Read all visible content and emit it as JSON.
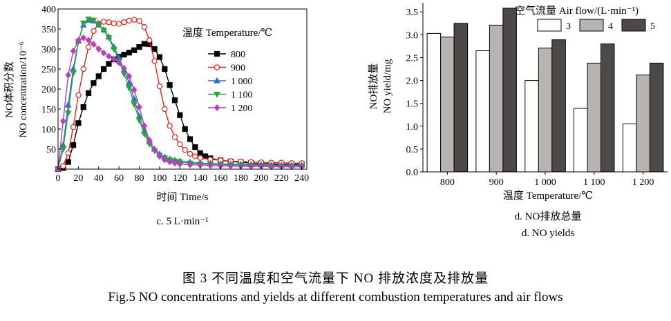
{
  "colors": {
    "s800": "#000000",
    "s900": "#e8201c",
    "s1000": "#2b6bd4",
    "s1100": "#27a53b",
    "s1200": "#b43fbf",
    "bar3": "#ffffff",
    "bar4": "#b7b3b1",
    "bar5": "#4d4949"
  },
  "chart_data": [
    {
      "type": "line",
      "panel_label": "c. 5 L·min⁻¹",
      "xlabel": "时间 Time/s",
      "ylabel_cn": "NO体积分数",
      "ylabel_en": "NO concentration/10⁻⁶",
      "xlim": [
        0,
        245
      ],
      "ylim": [
        0,
        400
      ],
      "x_ticks": [
        0,
        20,
        40,
        60,
        80,
        100,
        120,
        140,
        160,
        180,
        200,
        220,
        240
      ],
      "y_ticks": [
        50,
        100,
        150,
        200,
        250,
        300,
        350,
        400
      ],
      "legend_title": "温度 Temperature/℃",
      "legend_position": "top-right",
      "series": [
        {
          "name": "800",
          "key": "s800",
          "marker": "square",
          "points": [
            [
              0,
              0
            ],
            [
              5,
              3
            ],
            [
              10,
              18
            ],
            [
              15,
              60
            ],
            [
              20,
              115
            ],
            [
              25,
              155
            ],
            [
              30,
              190
            ],
            [
              35,
              215
            ],
            [
              40,
              232
            ],
            [
              45,
              250
            ],
            [
              50,
              263
            ],
            [
              55,
              274
            ],
            [
              60,
              281
            ],
            [
              65,
              286
            ],
            [
              70,
              291
            ],
            [
              75,
              297
            ],
            [
              80,
              305
            ],
            [
              85,
              313
            ],
            [
              90,
              312
            ],
            [
              95,
              300
            ],
            [
              100,
              280
            ],
            [
              105,
              250
            ],
            [
              110,
              210
            ],
            [
              115,
              172
            ],
            [
              120,
              135
            ],
            [
              125,
              100
            ],
            [
              130,
              75
            ],
            [
              135,
              55
            ],
            [
              140,
              40
            ],
            [
              145,
              32
            ],
            [
              150,
              27
            ],
            [
              160,
              22
            ],
            [
              170,
              19
            ],
            [
              180,
              17
            ],
            [
              190,
              15
            ],
            [
              200,
              14
            ],
            [
              210,
              13
            ],
            [
              220,
              12
            ],
            [
              230,
              12
            ],
            [
              240,
              12
            ]
          ]
        },
        {
          "name": "900",
          "key": "s900",
          "marker": "circle",
          "points": [
            [
              0,
              0
            ],
            [
              5,
              8
            ],
            [
              10,
              40
            ],
            [
              15,
              105
            ],
            [
              20,
              185
            ],
            [
              25,
              250
            ],
            [
              30,
              305
            ],
            [
              35,
              345
            ],
            [
              40,
              364
            ],
            [
              45,
              368
            ],
            [
              50,
              367
            ],
            [
              55,
              364
            ],
            [
              60,
              363
            ],
            [
              65,
              367
            ],
            [
              70,
              371
            ],
            [
              75,
              373
            ],
            [
              80,
              370
            ],
            [
              85,
              355
            ],
            [
              90,
              322
            ],
            [
              95,
              270
            ],
            [
              100,
              207
            ],
            [
              105,
              150
            ],
            [
              110,
              108
            ],
            [
              115,
              80
            ],
            [
              120,
              62
            ],
            [
              125,
              48
            ],
            [
              130,
              38
            ],
            [
              135,
              32
            ],
            [
              140,
              28
            ],
            [
              150,
              24
            ],
            [
              160,
              22
            ],
            [
              170,
              20
            ],
            [
              180,
              19
            ],
            [
              190,
              18
            ],
            [
              200,
              17
            ],
            [
              210,
              16
            ],
            [
              220,
              16
            ],
            [
              230,
              15
            ],
            [
              240,
              15
            ]
          ]
        },
        {
          "name": "1 000",
          "key": "s1000",
          "marker": "triangle-up",
          "points": [
            [
              0,
              0
            ],
            [
              5,
              60
            ],
            [
              10,
              160
            ],
            [
              15,
              250
            ],
            [
              20,
              320
            ],
            [
              25,
              360
            ],
            [
              30,
              372
            ],
            [
              35,
              370
            ],
            [
              40,
              360
            ],
            [
              45,
              348
            ],
            [
              50,
              330
            ],
            [
              55,
              305
            ],
            [
              60,
              278
            ],
            [
              65,
              248
            ],
            [
              70,
              215
            ],
            [
              75,
              175
            ],
            [
              80,
              132
            ],
            [
              85,
              95
            ],
            [
              90,
              68
            ],
            [
              95,
              50
            ],
            [
              100,
              38
            ],
            [
              105,
              30
            ],
            [
              110,
              25
            ],
            [
              115,
              22
            ],
            [
              120,
              20
            ],
            [
              130,
              17
            ],
            [
              140,
              15
            ],
            [
              150,
              14
            ],
            [
              160,
              13
            ],
            [
              170,
              12
            ],
            [
              180,
              12
            ],
            [
              190,
              11
            ],
            [
              200,
              11
            ],
            [
              210,
              10
            ],
            [
              220,
              10
            ],
            [
              230,
              10
            ],
            [
              240,
              10
            ]
          ]
        },
        {
          "name": "1 100",
          "key": "s1100",
          "marker": "triangle-down",
          "points": [
            [
              0,
              0
            ],
            [
              5,
              50
            ],
            [
              10,
              140
            ],
            [
              15,
              240
            ],
            [
              20,
              318
            ],
            [
              25,
              365
            ],
            [
              30,
              375
            ],
            [
              35,
              372
            ],
            [
              40,
              362
            ],
            [
              45,
              347
            ],
            [
              50,
              328
            ],
            [
              55,
              300
            ],
            [
              60,
              270
            ],
            [
              65,
              238
            ],
            [
              70,
              203
            ],
            [
              75,
              162
            ],
            [
              80,
              122
            ],
            [
              85,
              88
            ],
            [
              90,
              63
            ],
            [
              95,
              46
            ],
            [
              100,
              35
            ],
            [
              105,
              28
            ],
            [
              110,
              23
            ],
            [
              115,
              20
            ],
            [
              120,
              18
            ],
            [
              130,
              15
            ],
            [
              140,
              13
            ],
            [
              150,
              12
            ],
            [
              160,
              11
            ],
            [
              170,
              10
            ],
            [
              180,
              10
            ],
            [
              190,
              9
            ],
            [
              200,
              9
            ],
            [
              210,
              9
            ],
            [
              220,
              8
            ],
            [
              230,
              8
            ],
            [
              240,
              8
            ]
          ]
        },
        {
          "name": "1 200",
          "key": "s1200",
          "marker": "diamond",
          "points": [
            [
              0,
              0
            ],
            [
              5,
              120
            ],
            [
              10,
              235
            ],
            [
              15,
              295
            ],
            [
              20,
              322
            ],
            [
              25,
              328
            ],
            [
              30,
              322
            ],
            [
              35,
              312
            ],
            [
              40,
              300
            ],
            [
              45,
              290
            ],
            [
              50,
              282
            ],
            [
              55,
              275
            ],
            [
              60,
              266
            ],
            [
              65,
              252
            ],
            [
              70,
              232
            ],
            [
              75,
              198
            ],
            [
              80,
              155
            ],
            [
              85,
              108
            ],
            [
              90,
              72
            ],
            [
              95,
              48
            ],
            [
              100,
              32
            ],
            [
              105,
              23
            ],
            [
              110,
              18
            ],
            [
              115,
              15
            ],
            [
              120,
              13
            ],
            [
              130,
              11
            ],
            [
              140,
              10
            ],
            [
              150,
              9
            ],
            [
              160,
              8
            ],
            [
              170,
              8
            ],
            [
              180,
              7
            ],
            [
              190,
              7
            ],
            [
              200,
              7
            ],
            [
              210,
              6
            ],
            [
              220,
              6
            ],
            [
              230,
              6
            ],
            [
              240,
              6
            ]
          ]
        }
      ]
    },
    {
      "type": "bar",
      "panel_label_cn": "d. NO排放总量",
      "panel_label_en": "d. NO yields",
      "xlabel": "温度 Temperature/℃",
      "ylabel_cn": "NO排放量",
      "ylabel_en": "NO yield/mg",
      "categories": [
        "800",
        "900",
        "1 000",
        "1 100",
        "1 200"
      ],
      "ylim": [
        0,
        3.7
      ],
      "y_ticks": [
        0.0,
        0.5,
        1.0,
        1.5,
        2.0,
        2.5,
        3.0,
        3.5
      ],
      "legend_title": "空气流量 Air flow/(L·min⁻¹)",
      "legend_position": "top-right",
      "series": [
        {
          "name": "3",
          "key": "bar3",
          "values": [
            3.03,
            2.65,
            2.0,
            1.39,
            1.05
          ]
        },
        {
          "name": "4",
          "key": "bar4",
          "values": [
            2.95,
            3.21,
            2.71,
            2.38,
            2.12
          ]
        },
        {
          "name": "5",
          "key": "bar5",
          "values": [
            3.25,
            3.58,
            2.89,
            2.8,
            2.38
          ]
        }
      ]
    }
  ],
  "caption": {
    "cn": "图 3    不同温度和空气流量下 NO 排放浓度及排放量",
    "en": "Fig.5    NO concentrations and yields at different combustion temperatures and air flows"
  }
}
